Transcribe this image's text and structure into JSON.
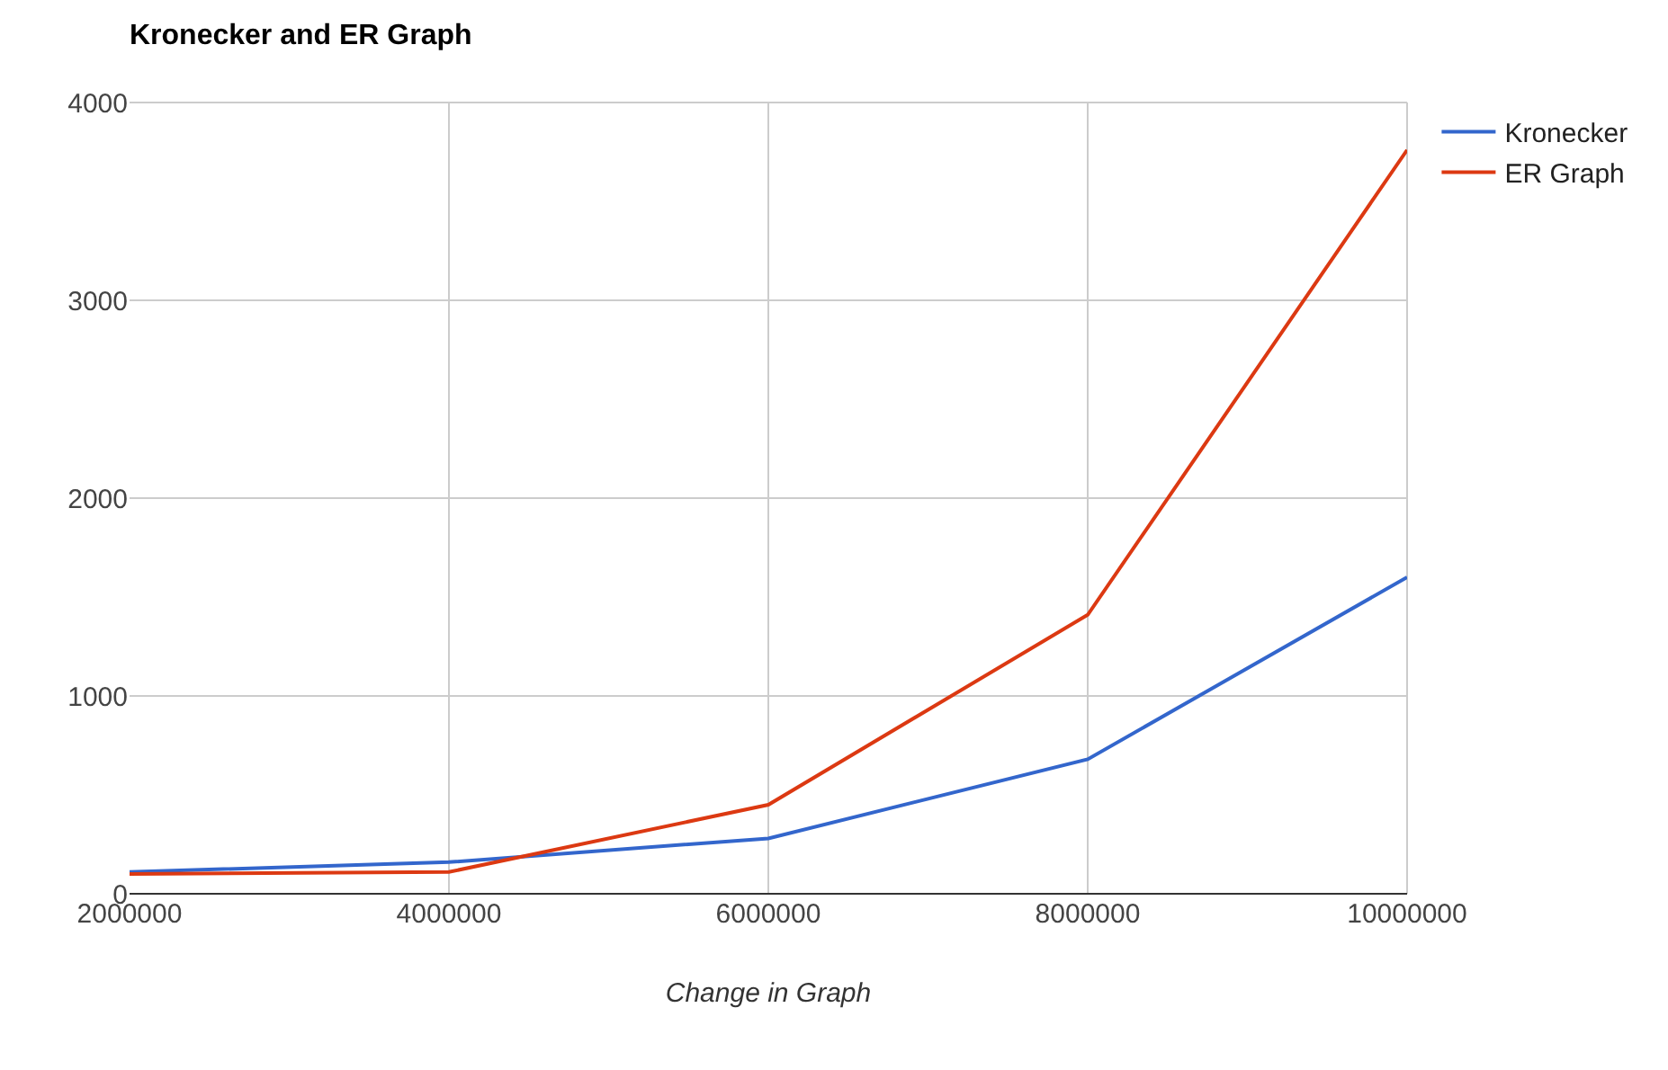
{
  "chart_data": {
    "type": "line",
    "title": "Kronecker and ER Graph",
    "xlabel": "Change in Graph",
    "x": [
      2000000,
      4000000,
      6000000,
      8000000,
      10000000
    ],
    "series": [
      {
        "name": "Kronecker",
        "color": "#3366cc",
        "values": [
          110,
          160,
          280,
          680,
          1600
        ]
      },
      {
        "name": "ER Graph",
        "color": "#dc3912",
        "values": [
          100,
          110,
          450,
          1410,
          3760
        ]
      }
    ],
    "xlim": [
      2000000,
      10000000
    ],
    "xticks": [
      2000000,
      4000000,
      6000000,
      8000000,
      10000000
    ],
    "ylim": [
      0,
      4000
    ],
    "yticks": [
      0,
      1000,
      2000,
      3000,
      4000
    ],
    "grid": true,
    "legend": "top right",
    "marker": "none",
    "line_style": "solid"
  }
}
